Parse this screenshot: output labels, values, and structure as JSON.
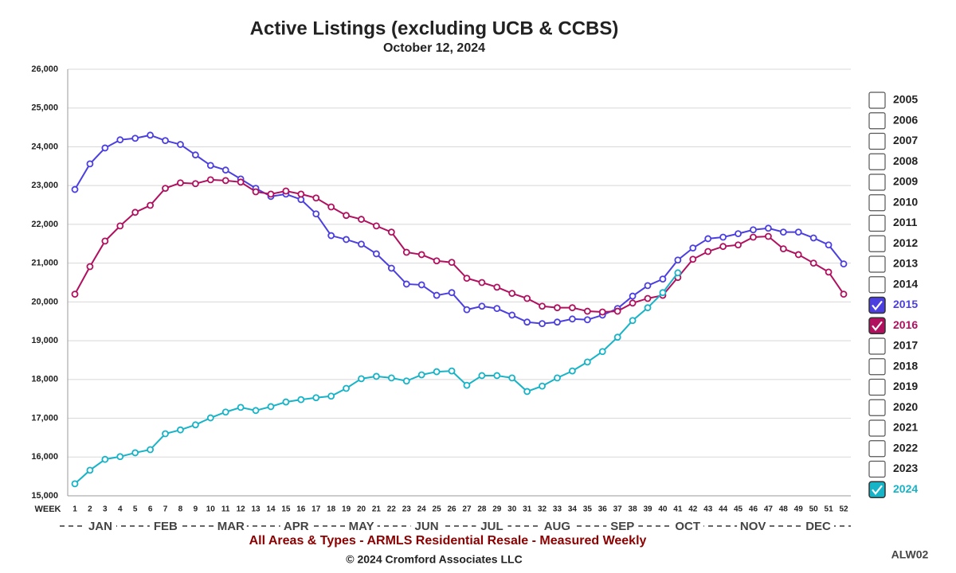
{
  "chart_data": {
    "type": "line",
    "title": "Active Listings (excluding UCB & CCBS)",
    "subtitle": "October 12, 2024",
    "x_label": "WEEK",
    "categories": [
      1,
      2,
      3,
      4,
      5,
      6,
      7,
      8,
      9,
      10,
      11,
      12,
      13,
      14,
      15,
      16,
      17,
      18,
      19,
      20,
      21,
      22,
      23,
      24,
      25,
      26,
      27,
      28,
      29,
      30,
      31,
      32,
      33,
      34,
      35,
      36,
      37,
      38,
      39,
      40,
      41,
      42,
      43,
      44,
      45,
      46,
      47,
      48,
      49,
      50,
      51,
      52
    ],
    "months": [
      "JAN",
      "FEB",
      "MAR",
      "APR",
      "MAY",
      "JUN",
      "JUL",
      "AUG",
      "SEP",
      "OCT",
      "NOV",
      "DEC"
    ],
    "ylim": [
      15000,
      26000
    ],
    "yticks": [
      {
        "value": 15000,
        "label": "15,000"
      },
      {
        "value": 16000,
        "label": "16,000"
      },
      {
        "value": 17000,
        "label": "17,000"
      },
      {
        "value": 18000,
        "label": "18,000"
      },
      {
        "value": 19000,
        "label": "19,000"
      },
      {
        "value": 20000,
        "label": "20,000"
      },
      {
        "value": 21000,
        "label": "21,000"
      },
      {
        "value": 22000,
        "label": "22,000"
      },
      {
        "value": 23000,
        "label": "23,000"
      },
      {
        "value": 24000,
        "label": "24,000"
      },
      {
        "value": 25000,
        "label": "25,000"
      },
      {
        "value": 26000,
        "label": "26,000"
      }
    ],
    "grid": true,
    "series": [
      {
        "name": "2015",
        "color": "#4b3fe0",
        "values": [
          22900,
          23560,
          23970,
          24180,
          24220,
          24300,
          24160,
          24060,
          23790,
          23520,
          23400,
          23170,
          22930,
          22720,
          22780,
          22640,
          22270,
          21710,
          21610,
          21490,
          21240,
          20870,
          20460,
          20440,
          20170,
          20240,
          19800,
          19890,
          19830,
          19660,
          19480,
          19440,
          19480,
          19560,
          19540,
          19660,
          19830,
          20150,
          20420,
          20590,
          21080,
          21390,
          21630,
          21670,
          21760,
          21860,
          21900,
          21800,
          21800,
          21650,
          21470,
          20980
        ]
      },
      {
        "name": "2016",
        "color": "#b0105e",
        "values": [
          20200,
          20910,
          21570,
          21960,
          22310,
          22490,
          22930,
          23070,
          23050,
          23150,
          23130,
          23090,
          22840,
          22780,
          22860,
          22780,
          22680,
          22450,
          22230,
          22130,
          21960,
          21800,
          21280,
          21220,
          21060,
          21020,
          20610,
          20500,
          20380,
          20220,
          20090,
          19890,
          19850,
          19850,
          19760,
          19740,
          19760,
          19970,
          20090,
          20170,
          20630,
          21100,
          21300,
          21430,
          21470,
          21670,
          21690,
          21370,
          21220,
          21000,
          20770,
          20200
        ]
      },
      {
        "name": "2024",
        "color": "#17b3c6",
        "values": [
          15310,
          15660,
          15940,
          16010,
          16110,
          16190,
          16600,
          16700,
          16830,
          17010,
          17160,
          17280,
          17200,
          17300,
          17420,
          17480,
          17530,
          17570,
          17770,
          18020,
          18080,
          18040,
          17960,
          18120,
          18200,
          18220,
          17850,
          18100,
          18100,
          18040,
          17690,
          17830,
          18040,
          18220,
          18450,
          18720,
          19090,
          19520,
          19850,
          20240,
          20750,
          null,
          null,
          null,
          null,
          null,
          null,
          null,
          null,
          null,
          null,
          null
        ]
      }
    ],
    "legend_unchecked": [
      "2005",
      "2006",
      "2007",
      "2008",
      "2009",
      "2010",
      "2011",
      "2012",
      "2013",
      "2014",
      "2017",
      "2018",
      "2019",
      "2020",
      "2021",
      "2022",
      "2023"
    ],
    "footer": "All Areas & Types - ARMLS Residential Resale - Measured Weekly",
    "copyright": "© 2024 Cromford Associates LLC",
    "code": "ALW02"
  }
}
